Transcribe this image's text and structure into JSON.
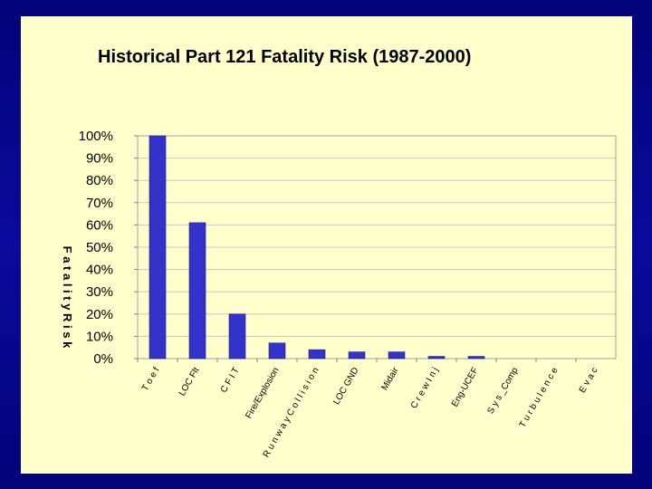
{
  "chart_data": {
    "type": "bar",
    "title": "Historical Part 121 Fatality Risk (1987-2000)",
    "ylabel": "F a t a l i t y R i s k",
    "categories": [
      "T o e f",
      "LOC Flt",
      "C F I T",
      "Fire/Explosion",
      "R u n w a y C o l l i s i o n",
      "LOC GND",
      "Midair",
      "C r e w I n j",
      "Eng-UCEF",
      "S y s _Comp",
      "T u r b u l e n c e",
      "E v a c"
    ],
    "values": [
      100,
      61,
      20,
      7,
      4,
      3,
      3,
      1,
      1,
      0,
      0,
      0
    ],
    "ylim": [
      0,
      100
    ],
    "yticks": [
      "0%",
      "10%",
      "20%",
      "30%",
      "40%",
      "50%",
      "60%",
      "70%",
      "80%",
      "90%",
      "100%"
    ],
    "grid": true,
    "colors": {
      "bar": "#3333cc",
      "grid": "#c8c8c8"
    }
  }
}
